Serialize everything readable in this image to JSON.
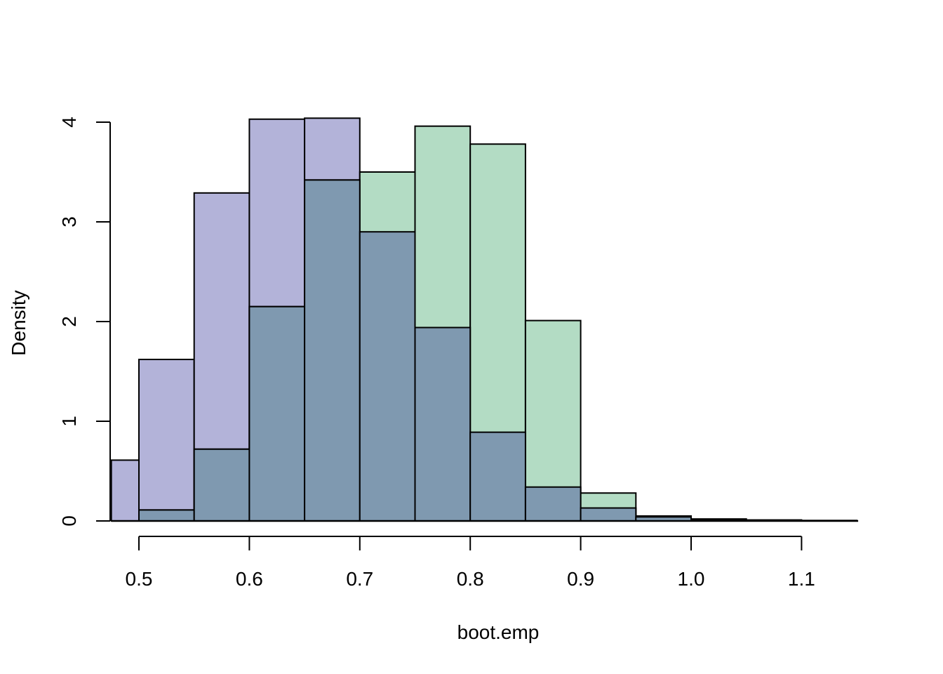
{
  "chart_data": {
    "type": "bar",
    "subtype": "overlaid-histogram",
    "title": "",
    "xlabel": "boot.emp",
    "ylabel": "Density",
    "xlim": [
      0.475,
      1.15
    ],
    "ylim": [
      0,
      4
    ],
    "x_ticks": [
      0.5,
      0.6,
      0.7,
      0.8,
      0.9,
      1.0,
      1.1
    ],
    "x_tick_labels": [
      "0.5",
      "0.6",
      "0.7",
      "0.8",
      "0.9",
      "1.0",
      "1.1"
    ],
    "y_ticks": [
      0,
      1,
      2,
      3,
      4
    ],
    "y_tick_labels": [
      "0",
      "1",
      "2",
      "3",
      "4"
    ],
    "grid": false,
    "legend": "none",
    "series": [
      {
        "color": "#b3b3d9",
        "bins": [
          {
            "x0": 0.475,
            "x1": 0.5,
            "density": 0.61
          },
          {
            "x0": 0.5,
            "x1": 0.55,
            "density": 1.62
          },
          {
            "x0": 0.55,
            "x1": 0.6,
            "density": 3.29
          },
          {
            "x0": 0.6,
            "x1": 0.65,
            "density": 4.03
          },
          {
            "x0": 0.65,
            "x1": 0.7,
            "density": 4.04
          },
          {
            "x0": 0.7,
            "x1": 0.75,
            "density": 2.9
          },
          {
            "x0": 0.75,
            "x1": 0.8,
            "density": 1.94
          },
          {
            "x0": 0.8,
            "x1": 0.85,
            "density": 0.89
          },
          {
            "x0": 0.85,
            "x1": 0.9,
            "density": 0.34
          },
          {
            "x0": 0.9,
            "x1": 0.95,
            "density": 0.13
          },
          {
            "x0": 0.95,
            "x1": 1.0,
            "density": 0.05
          },
          {
            "x0": 1.0,
            "x1": 1.05,
            "density": 0.02
          },
          {
            "x0": 1.05,
            "x1": 1.1,
            "density": 0.01
          },
          {
            "x0": 1.1,
            "x1": 1.15,
            "density": 0.005
          }
        ]
      },
      {
        "color": "#b3dcc4",
        "bins": [
          {
            "x0": 0.5,
            "x1": 0.55,
            "density": 0.11
          },
          {
            "x0": 0.55,
            "x1": 0.6,
            "density": 0.72
          },
          {
            "x0": 0.6,
            "x1": 0.65,
            "density": 2.15
          },
          {
            "x0": 0.65,
            "x1": 0.7,
            "density": 3.42
          },
          {
            "x0": 0.7,
            "x1": 0.75,
            "density": 3.5
          },
          {
            "x0": 0.75,
            "x1": 0.8,
            "density": 3.96
          },
          {
            "x0": 0.8,
            "x1": 0.85,
            "density": 3.78
          },
          {
            "x0": 0.85,
            "x1": 0.9,
            "density": 2.01
          },
          {
            "x0": 0.9,
            "x1": 0.95,
            "density": 0.28
          },
          {
            "x0": 0.95,
            "x1": 1.0,
            "density": 0.04
          },
          {
            "x0": 1.0,
            "x1": 1.05,
            "density": 0.01
          }
        ]
      }
    ],
    "overlap_color": "#7f99b0"
  }
}
